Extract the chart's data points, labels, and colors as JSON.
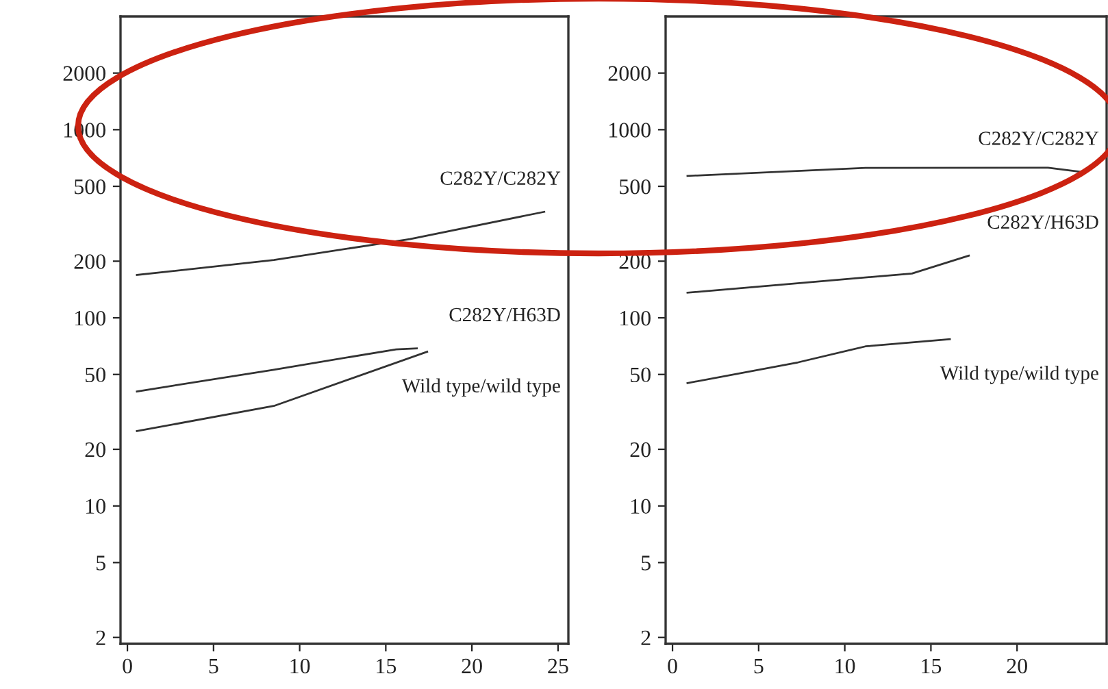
{
  "chart_data": [
    {
      "type": "line",
      "log": "y",
      "xlim": [
        -0.4,
        25.6
      ],
      "ylim": [
        1.85,
        4000
      ],
      "xticks": [
        0,
        5,
        10,
        15,
        20,
        25
      ],
      "yticks": [
        2,
        5,
        10,
        20,
        50,
        100,
        200,
        500,
        1000,
        2000
      ],
      "grid": false,
      "legend": false,
      "series": [
        {
          "name": "C282Y/C282Y",
          "color": "#333333",
          "x": [
            0.55,
            8.5,
            16.4,
            24.2
          ],
          "values": [
            169,
            203,
            262,
            366
          ]
        },
        {
          "name": "C282Y/H63D",
          "color": "#333333",
          "x": [
            0.55,
            8.5,
            15.6,
            16.8
          ],
          "values": [
            40.6,
            53,
            68,
            68.8
          ]
        },
        {
          "name": "Wild type/wild type",
          "color": "#333333",
          "x": [
            0.55,
            8.5,
            17.4
          ],
          "values": [
            25,
            34,
            66
          ]
        }
      ]
    },
    {
      "type": "line",
      "log": "y",
      "xlim": [
        -0.4,
        25.2
      ],
      "ylim": [
        1.85,
        4000
      ],
      "xticks": [
        0,
        5,
        10,
        15,
        20
      ],
      "yticks": [
        2,
        5,
        10,
        20,
        50,
        100,
        200,
        500,
        1000,
        2000
      ],
      "grid": false,
      "legend": false,
      "series": [
        {
          "name": "C282Y/C282Y",
          "color": "#333333",
          "x": [
            0.87,
            11.2,
            21.8,
            23.8
          ],
          "values": [
            568,
            627,
            628,
            596
          ]
        },
        {
          "name": "C282Y/H63D",
          "color": "#333333",
          "x": [
            0.87,
            13.9,
            17.2
          ],
          "values": [
            136,
            172,
            214
          ]
        },
        {
          "name": "Wild type/wild type",
          "color": "#333333",
          "x": [
            0.87,
            7.3,
            11.2,
            16.1
          ],
          "values": [
            45,
            58,
            70.5,
            77
          ]
        }
      ]
    }
  ]
}
